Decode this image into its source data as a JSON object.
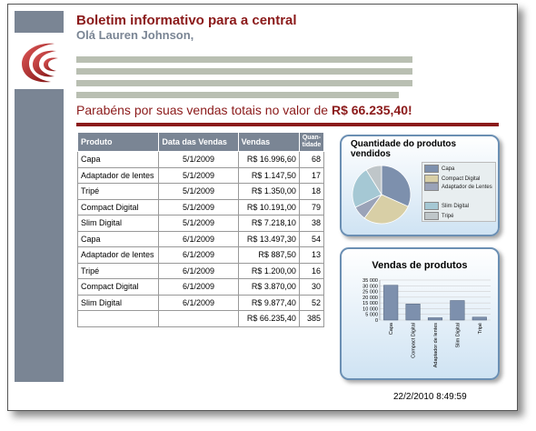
{
  "header": {
    "title": "Boletim informativo para a central",
    "greeting": "Olá Lauren Johnson,",
    "congrats_prefix": "Parabéns por suas vendas totais no valor de ",
    "congrats_amount": "R$ 66.235,40!"
  },
  "table": {
    "headers": {
      "produto": "Produto",
      "data": "Data das Vendas",
      "vendas": "Vendas",
      "quantidade": "Quan-tidade"
    },
    "rows": [
      {
        "produto": "Capa",
        "data": "5/1/2009",
        "vendas": "R$ 16.996,60",
        "qtd": "68"
      },
      {
        "produto": "Adaptador de lentes",
        "data": "5/1/2009",
        "vendas": "R$ 1.147,50",
        "qtd": "17"
      },
      {
        "produto": "Tripé",
        "data": "5/1/2009",
        "vendas": "R$ 1.350,00",
        "qtd": "18"
      },
      {
        "produto": "Compact Digital",
        "data": "5/1/2009",
        "vendas": "R$ 10.191,00",
        "qtd": "79"
      },
      {
        "produto": "Slim Digital",
        "data": "5/1/2009",
        "vendas": "R$ 7.218,10",
        "qtd": "38"
      },
      {
        "produto": "Capa",
        "data": "6/1/2009",
        "vendas": "R$ 13.497,30",
        "qtd": "54"
      },
      {
        "produto": "Adaptador de lentes",
        "data": "6/1/2009",
        "vendas": "R$ 887,50",
        "qtd": "13"
      },
      {
        "produto": "Tripé",
        "data": "6/1/2009",
        "vendas": "R$ 1.200,00",
        "qtd": "16"
      },
      {
        "produto": "Compact Digital",
        "data": "6/1/2009",
        "vendas": "R$ 3.870,00",
        "qtd": "30"
      },
      {
        "produto": "Slim Digital",
        "data": "6/1/2009",
        "vendas": "R$ 9.877,40",
        "qtd": "52"
      }
    ],
    "total": {
      "vendas": "R$ 66.235,40",
      "qtd": "385"
    }
  },
  "pie_panel": {
    "title": "Quantidade do produtos vendidos",
    "legend": [
      "Capa",
      "Compact Digital",
      "Adaptador de Lentes",
      "Slim Digital",
      "Tripé"
    ]
  },
  "bar_panel": {
    "title": "Vendas de produtos"
  },
  "footer": {
    "timestamp": "22/2/2010 8:49:59"
  },
  "colors": {
    "accent": "#8b1a1a",
    "slate": "#7a8594"
  },
  "chart_data": [
    {
      "type": "pie",
      "title": "Quantidade do produtos vendidos",
      "categories": [
        "Capa",
        "Compact Digital",
        "Adaptador de Lentes",
        "Slim Digital",
        "Tripé"
      ],
      "values": [
        122,
        109,
        30,
        90,
        34
      ],
      "colors": [
        "#7d90ad",
        "#d8cfa6",
        "#9aa3b8",
        "#a5c8d4",
        "#bfc6c9"
      ]
    },
    {
      "type": "bar",
      "title": "Vendas de produtos",
      "categories": [
        "Capa",
        "Compact Digital",
        "Adaptador de lentes",
        "Slim Digital",
        "Tripé"
      ],
      "values": [
        30493.9,
        14061.0,
        2035.0,
        17095.5,
        2550.0
      ],
      "ylim": [
        0,
        35000
      ],
      "yticks": [
        "35 000",
        "30 000",
        "25 000",
        "20 000",
        "15 000",
        "10 000",
        "5 000",
        "0"
      ]
    }
  ]
}
